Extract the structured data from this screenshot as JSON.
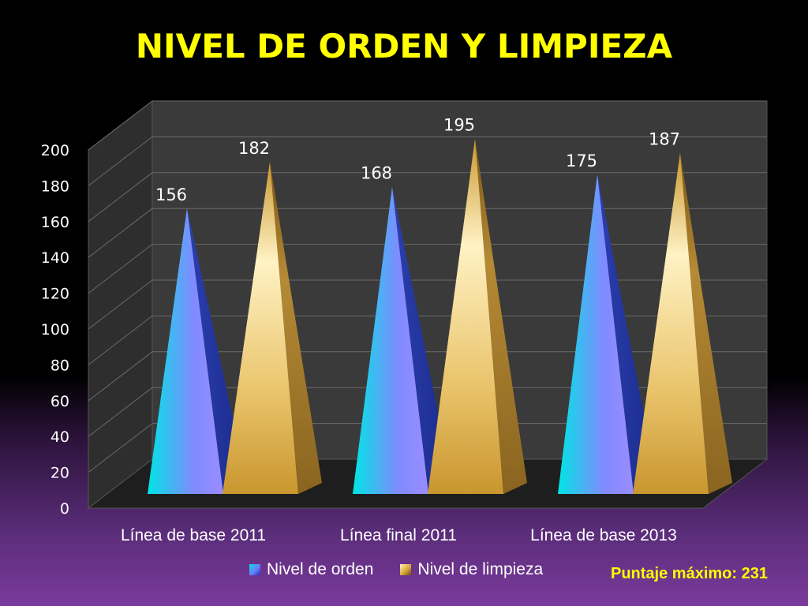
{
  "title": "NIVEL DE ORDEN Y LIMPIEZA",
  "note": "Puntaje máximo: 231",
  "legend": {
    "orden": "Nivel de orden",
    "limpieza": "Nivel de limpieza"
  },
  "colors": {
    "title": "#ffff00",
    "orden_light": "#00e0e0",
    "orden_mid": "#8a8cff",
    "orden_dark": "#2233aa",
    "limpieza_light": "#fff0b8",
    "limpieza_mid": "#d9a93a",
    "limpieza_dark": "#6b4a10"
  },
  "chart_data": {
    "type": "bar",
    "style": "3d-pyramid",
    "title": "NIVEL DE ORDEN Y LIMPIEZA",
    "xlabel": "",
    "ylabel": "",
    "categories": [
      "Línea de base 2011",
      "Línea final 2011",
      "Línea de base 2013"
    ],
    "series": [
      {
        "name": "Nivel de orden",
        "values": [
          156,
          168,
          175
        ]
      },
      {
        "name": "Nivel de limpieza",
        "values": [
          182,
          195,
          187
        ]
      }
    ],
    "ylim": [
      0,
      200
    ],
    "yticks": [
      0,
      20,
      40,
      60,
      80,
      100,
      120,
      140,
      160,
      180,
      200
    ],
    "grid": true,
    "legend": "bottom",
    "data_labels": true
  }
}
